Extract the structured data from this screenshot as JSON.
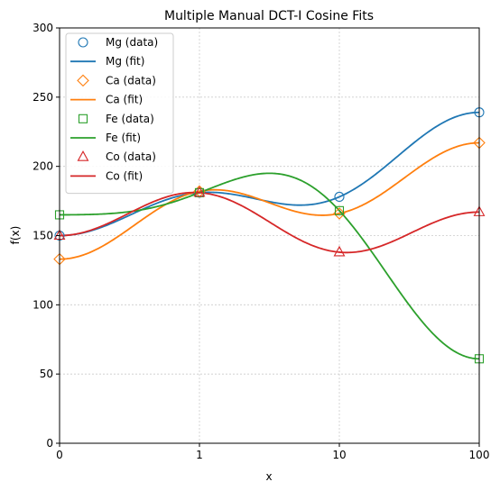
{
  "chart_data": {
    "type": "line",
    "title": "Multiple Manual DCT-I Cosine Fits",
    "xlabel": "x",
    "ylabel": "f(x)",
    "x_ticks": [
      "0",
      "1",
      "10",
      "100"
    ],
    "y_ticks": [
      0,
      50,
      100,
      150,
      200,
      250,
      300
    ],
    "ylim": [
      0,
      300
    ],
    "grid": true,
    "legend_position": "top-left",
    "series": [
      {
        "name": "Mg",
        "data_label": "Mg (data)",
        "fit_label": "Mg (fit)",
        "color": "#1f77b4",
        "marker": "circle",
        "data": [
          150,
          181,
          178,
          239
        ]
      },
      {
        "name": "Ca",
        "data_label": "Ca (data)",
        "fit_label": "Ca (fit)",
        "color": "#ff7f0e",
        "marker": "diamond",
        "data": [
          133,
          182,
          166,
          217
        ]
      },
      {
        "name": "Fe",
        "data_label": "Fe (data)",
        "fit_label": "Fe (fit)",
        "color": "#2ca02c",
        "marker": "square",
        "data": [
          165,
          181,
          168,
          61
        ]
      },
      {
        "name": "Co",
        "data_label": "Co (data)",
        "fit_label": "Co (fit)",
        "color": "#d62728",
        "marker": "triangle",
        "data": [
          150,
          181,
          138,
          167
        ]
      }
    ]
  }
}
